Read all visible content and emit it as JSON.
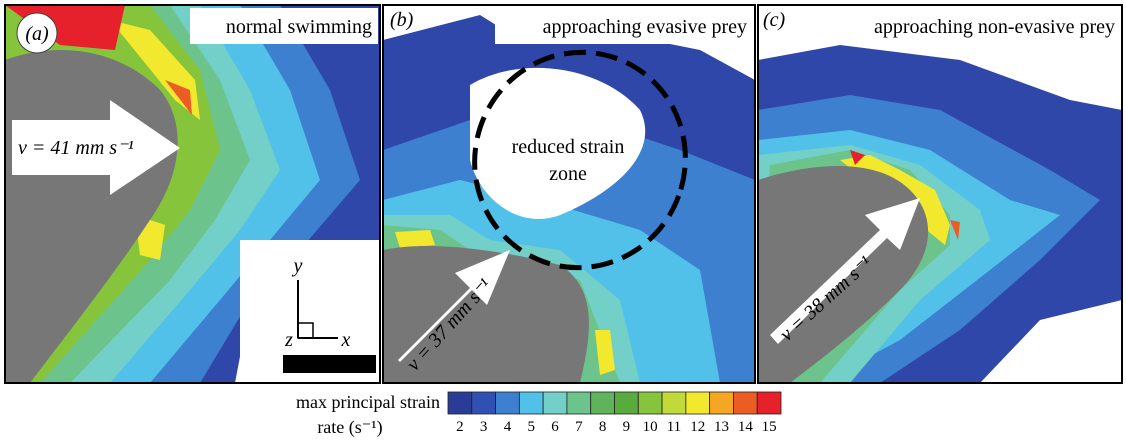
{
  "panels": [
    {
      "label": "(a)",
      "title": "normal swimming",
      "velocity": "ν = 41 mm s⁻¹"
    },
    {
      "label": "(b)",
      "title": "approaching evasive prey",
      "velocity": "ν = 37 mm s⁻¹"
    },
    {
      "label": "(c)",
      "title": "approaching non-evasive prey",
      "velocity": "ν = 38 mm s⁻¹"
    }
  ],
  "zone_note": [
    "reduced strain",
    "zone"
  ],
  "axes_key": {
    "y": "y",
    "z": "z",
    "x": "x"
  },
  "colorbar": {
    "label": [
      "max principal strain",
      "rate (s⁻¹)"
    ],
    "ticks": [
      2,
      3,
      4,
      5,
      6,
      7,
      8,
      9,
      10,
      11,
      12,
      13,
      14,
      15
    ],
    "colors": [
      "#2b3c98",
      "#3150b4",
      "#3d80cf",
      "#52c1e9",
      "#72d0c8",
      "#6cc38c",
      "#5fb35a",
      "#59ab3d",
      "#86c43c",
      "#c2d93a",
      "#f2e92f",
      "#f5a623",
      "#ec5d25",
      "#e6212b"
    ]
  }
}
